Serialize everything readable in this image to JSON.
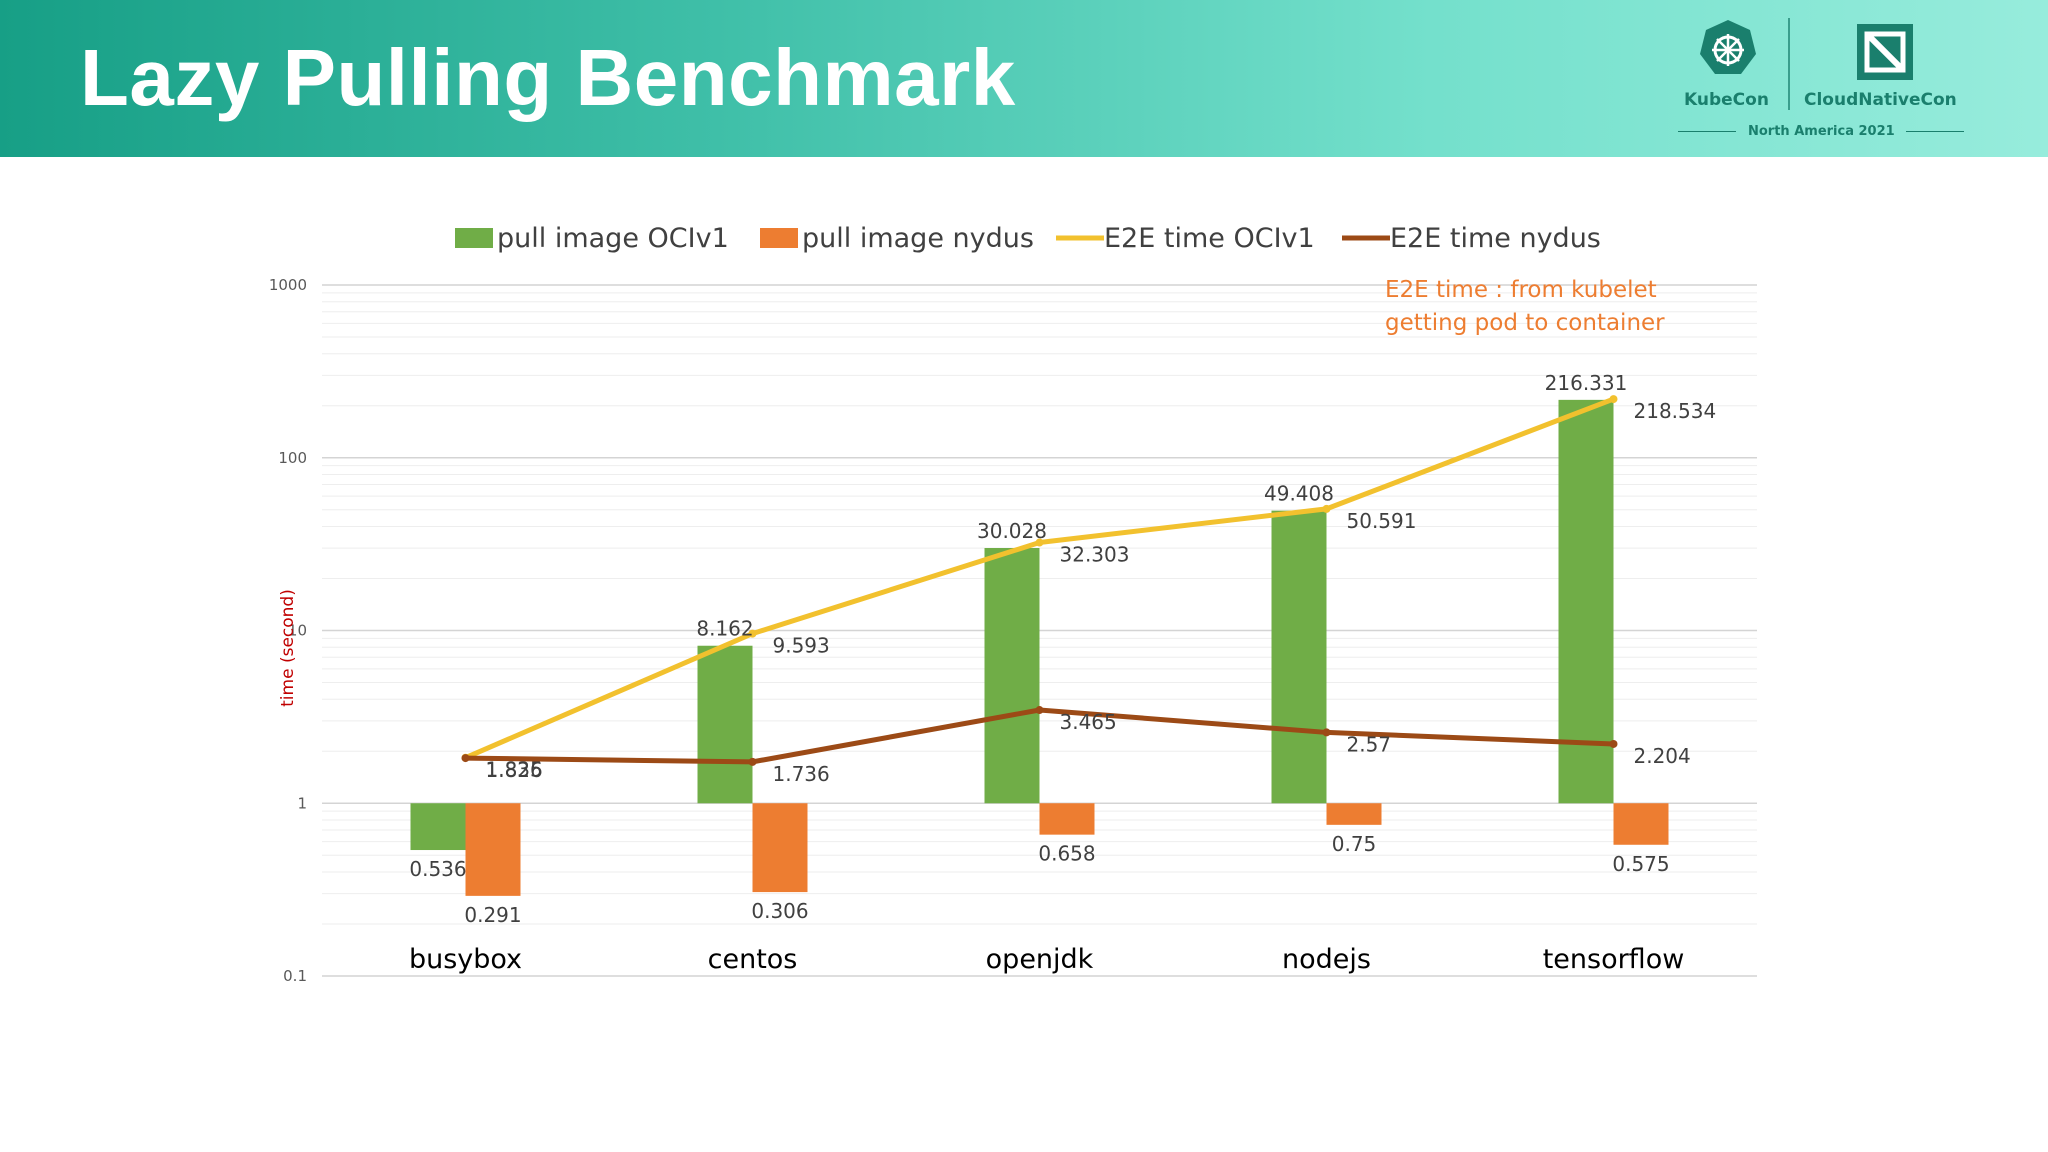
{
  "header": {
    "title": "Lazy Pulling Benchmark",
    "logo": {
      "left_text": "KubeCon",
      "right_text": "CloudNativeCon",
      "event": "North America 2021",
      "icon": "kubecon-helm-icon"
    }
  },
  "chart_data": {
    "type": "bar",
    "title": "",
    "xlabel": "",
    "ylabel": "time (second)",
    "yscale": "log",
    "ylim": [
      0.1,
      1000
    ],
    "yticks": [
      "0.1",
      "1",
      "10",
      "100",
      "1000"
    ],
    "grid": true,
    "legend_position": "top",
    "note": [
      "E2E time : from kubelet",
      "getting pod to container"
    ],
    "categories": [
      "busybox",
      "centos",
      "openjdk",
      "nodejs",
      "tensorflow"
    ],
    "series": [
      {
        "name": "pull image OCIv1",
        "kind": "bar",
        "color": "#70ad47",
        "values": [
          0.536,
          8.162,
          30.028,
          49.408,
          216.331
        ],
        "labels": [
          "0.536",
          "8.162",
          "30.028",
          "49.408",
          "216.331"
        ]
      },
      {
        "name": "pull image nydus",
        "kind": "bar",
        "color": "#ed7d31",
        "values": [
          0.291,
          0.306,
          0.658,
          0.75,
          0.575
        ],
        "labels": [
          "0.291",
          "0.306",
          "0.658",
          "0.75",
          "0.575"
        ]
      },
      {
        "name": "E2E time OCIv1",
        "kind": "line",
        "color": "#f2c12e",
        "values": [
          1.835,
          9.593,
          32.303,
          50.591,
          218.534
        ],
        "labels": [
          "1.835",
          "9.593",
          "32.303",
          "50.591",
          "218.534"
        ]
      },
      {
        "name": "E2E time nydus",
        "kind": "line",
        "color": "#9c4a16",
        "values": [
          1.826,
          1.736,
          3.465,
          2.57,
          2.204
        ],
        "labels": [
          "1.826",
          "1.736",
          "3.465",
          "2.57",
          "2.204"
        ]
      }
    ]
  }
}
